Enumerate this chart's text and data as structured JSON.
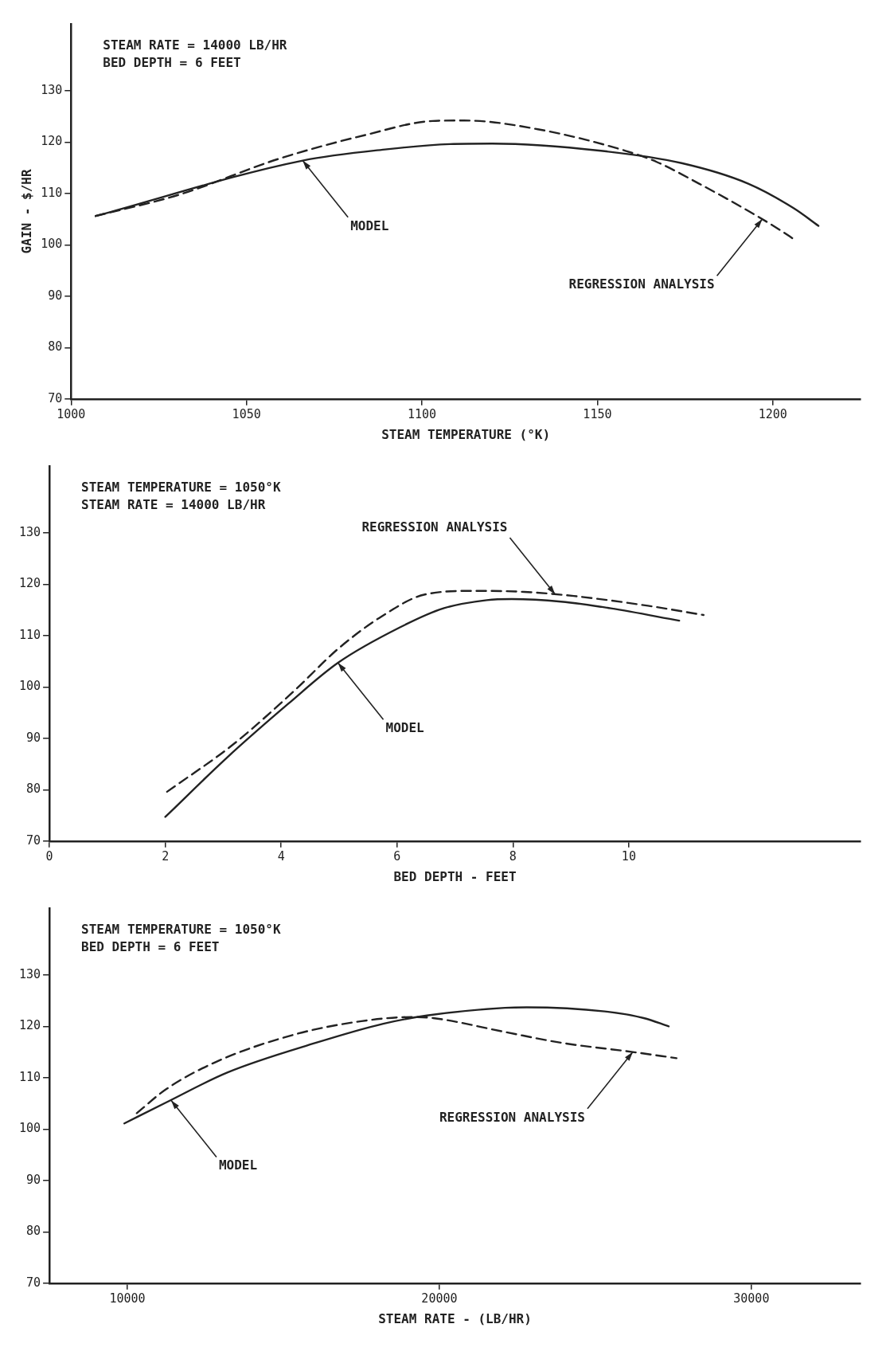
{
  "chart_data": [
    {
      "type": "line",
      "xlabel": "STEAM TEMPERATURE (°K)",
      "ylabel": "GAIN - $/HR",
      "xlim": [
        1000,
        1225
      ],
      "xticks": [
        1000,
        1050,
        1100,
        1150,
        1200
      ],
      "ylim": [
        70,
        143
      ],
      "yticks": [
        70,
        80,
        90,
        100,
        110,
        120,
        130
      ],
      "grid": false,
      "legend": false,
      "marker": "none",
      "series": [
        {
          "color": "#222222",
          "line_style": "solid",
          "x": [
            1007,
            1066,
            1090,
            1108,
            1120,
            1151,
            1174,
            1193,
            1206,
            1213
          ],
          "values": [
            105.6,
            116.4,
            118.6,
            119.6,
            119.7,
            118.3,
            115.9,
            111.9,
            107.1,
            103.7
          ]
        },
        {
          "color": "#222222",
          "line_style": "dashed",
          "x": [
            1007,
            1031,
            1059,
            1084,
            1103,
            1112,
            1133,
            1158,
            1167,
            1179,
            1193,
            1202,
            1206
          ],
          "values": [
            105.6,
            109.8,
            116.7,
            121.4,
            124.1,
            124.2,
            122.5,
            118.3,
            116.1,
            111.9,
            106.6,
            102.9,
            101.1
          ]
        }
      ],
      "annotations": [
        "STEAM RATE = 14000 LB/HR",
        "BED DEPTH = 6 FEET",
        {
          "text": "MODEL",
          "x": 1066,
          "y": 116.4
        },
        {
          "text": "REGRESSION ANALYSIS",
          "x": 1197,
          "y": 105.0
        }
      ]
    },
    {
      "type": "line",
      "xlabel": "BED DEPTH - FEET",
      "xlim": [
        0,
        14
      ],
      "xticks": [
        0,
        2,
        4,
        6,
        8,
        10
      ],
      "ylim": [
        70,
        143
      ],
      "yticks": [
        70,
        80,
        90,
        100,
        110,
        120,
        130
      ],
      "grid": false,
      "legend": false,
      "marker": "none",
      "series": [
        {
          "color": "#222222",
          "line_style": "solid",
          "x": [
            2.0,
            3.06,
            4.13,
            4.98,
            6.05,
            6.8,
            7.55,
            7.98,
            8.83,
            9.69,
            10.87
          ],
          "values": [
            74.7,
            86.2,
            96.8,
            104.7,
            111.6,
            115.3,
            116.9,
            117.1,
            116.6,
            115.3,
            112.9
          ]
        },
        {
          "color": "#222222",
          "line_style": "dashed",
          "x": [
            2.03,
            3.17,
            4.24,
            4.98,
            5.73,
            6.48,
            7.34,
            8.19,
            9.05,
            10.33,
            11.29
          ],
          "values": [
            79.6,
            88.8,
            99.4,
            107.4,
            113.7,
            118.0,
            118.7,
            118.5,
            117.7,
            115.8,
            114.0
          ]
        }
      ],
      "annotations": [
        "STEAM TEMPERATURE = 1050°K",
        "STEAM RATE = 14000 LB/HR",
        {
          "text": "MODEL",
          "x": 4.98,
          "y": 104.7
        },
        {
          "text": "REGRESSION ANALYSIS",
          "x": 8.73,
          "y": 118.0
        }
      ]
    },
    {
      "type": "line",
      "xlabel": "STEAM RATE - (LB/HR)",
      "xlim": [
        7500,
        33500
      ],
      "xticks": [
        10000,
        20000,
        30000
      ],
      "ylim": [
        70,
        143
      ],
      "yticks": [
        70,
        80,
        90,
        100,
        110,
        120,
        130
      ],
      "grid": false,
      "legend": false,
      "marker": "none",
      "series": [
        {
          "color": "#222222",
          "line_style": "solid",
          "x": [
            9900,
            11250,
            13200,
            16050,
            18200,
            19600,
            22100,
            22800,
            25300,
            26550,
            27350
          ],
          "values": [
            101.1,
            105.2,
            111.0,
            116.8,
            120.5,
            122.1,
            123.6,
            123.7,
            122.9,
            121.6,
            120.0
          ]
        },
        {
          "color": "#222222",
          "line_style": "dashed",
          "x": [
            10300,
            11250,
            12850,
            15350,
            17500,
            19100,
            19800,
            22100,
            23900,
            26200,
            27600
          ],
          "values": [
            103.1,
            107.8,
            113.1,
            118.4,
            121.0,
            121.8,
            121.6,
            118.9,
            116.8,
            115.0,
            113.8
          ]
        }
      ],
      "annotations": [
        "STEAM TEMPERATURE = 1050°K",
        "BED DEPTH = 6 FEET",
        {
          "text": "MODEL",
          "x": 11400,
          "y": 105.6
        },
        {
          "text": "REGRESSION ANALYSIS",
          "x": 26200,
          "y": 115.0
        }
      ]
    }
  ]
}
